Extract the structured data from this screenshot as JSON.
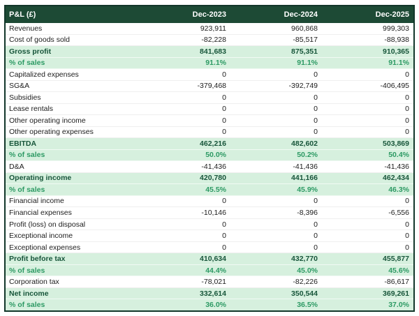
{
  "chart_data": {
    "type": "table",
    "title": "P&L (£)",
    "header_label": "P&L (£)",
    "columns": [
      "Dec-2023",
      "Dec-2024",
      "Dec-2025"
    ],
    "rows": [
      {
        "label": "Revenues",
        "values": [
          "923,911",
          "960,868",
          "999,303"
        ],
        "style": "normal"
      },
      {
        "label": "Cost of goods sold",
        "values": [
          "-82,228",
          "-85,517",
          "-88,938"
        ],
        "style": "normal"
      },
      {
        "label": "Gross profit",
        "values": [
          "841,683",
          "875,351",
          "910,365"
        ],
        "style": "total"
      },
      {
        "label": "% of sales",
        "values": [
          "91.1%",
          "91.1%",
          "91.1%"
        ],
        "style": "percent"
      },
      {
        "label": "Capitalized expenses",
        "values": [
          "0",
          "0",
          "0"
        ],
        "style": "normal"
      },
      {
        "label": "SG&A",
        "values": [
          "-379,468",
          "-392,749",
          "-406,495"
        ],
        "style": "normal"
      },
      {
        "label": "Subsidies",
        "values": [
          "0",
          "0",
          "0"
        ],
        "style": "normal"
      },
      {
        "label": "Lease rentals",
        "values": [
          "0",
          "0",
          "0"
        ],
        "style": "normal"
      },
      {
        "label": "Other operating income",
        "values": [
          "0",
          "0",
          "0"
        ],
        "style": "normal"
      },
      {
        "label": "Other operating expenses",
        "values": [
          "0",
          "0",
          "0"
        ],
        "style": "normal"
      },
      {
        "label": "EBITDA",
        "values": [
          "462,216",
          "482,602",
          "503,869"
        ],
        "style": "total"
      },
      {
        "label": "% of sales",
        "values": [
          "50.0%",
          "50.2%",
          "50.4%"
        ],
        "style": "percent"
      },
      {
        "label": "D&A",
        "values": [
          "-41,436",
          "-41,436",
          "-41,436"
        ],
        "style": "normal"
      },
      {
        "label": "Operating income",
        "values": [
          "420,780",
          "441,166",
          "462,434"
        ],
        "style": "total"
      },
      {
        "label": "% of sales",
        "values": [
          "45.5%",
          "45.9%",
          "46.3%"
        ],
        "style": "percent"
      },
      {
        "label": "Financial income",
        "values": [
          "0",
          "0",
          "0"
        ],
        "style": "normal"
      },
      {
        "label": "Financial expenses",
        "values": [
          "-10,146",
          "-8,396",
          "-6,556"
        ],
        "style": "normal"
      },
      {
        "label": "Profit (loss) on disposal",
        "values": [
          "0",
          "0",
          "0"
        ],
        "style": "normal"
      },
      {
        "label": "Exceptional income",
        "values": [
          "0",
          "0",
          "0"
        ],
        "style": "normal"
      },
      {
        "label": "Exceptional expenses",
        "values": [
          "0",
          "0",
          "0"
        ],
        "style": "normal"
      },
      {
        "label": "Profit before tax",
        "values": [
          "410,634",
          "432,770",
          "455,877"
        ],
        "style": "total"
      },
      {
        "label": "% of sales",
        "values": [
          "44.4%",
          "45.0%",
          "45.6%"
        ],
        "style": "percent"
      },
      {
        "label": "Corporation tax",
        "values": [
          "-78,021",
          "-82,226",
          "-86,617"
        ],
        "style": "normal"
      },
      {
        "label": "Net income",
        "values": [
          "332,614",
          "350,544",
          "369,261"
        ],
        "style": "total"
      },
      {
        "label": "% of sales",
        "values": [
          "36.0%",
          "36.5%",
          "37.0%"
        ],
        "style": "percent"
      }
    ],
    "colors": {
      "header_bg": "#1d4a35",
      "header_text": "#ffffff",
      "highlight_bg": "#d6f0de",
      "total_text": "#17553a",
      "percent_text": "#2d9a64",
      "body_text": "#1c1c1c",
      "border": "#12362a"
    },
    "layout": {
      "grid": "horizontal row separators only",
      "value_alignment": "right",
      "label_alignment": "left"
    }
  }
}
